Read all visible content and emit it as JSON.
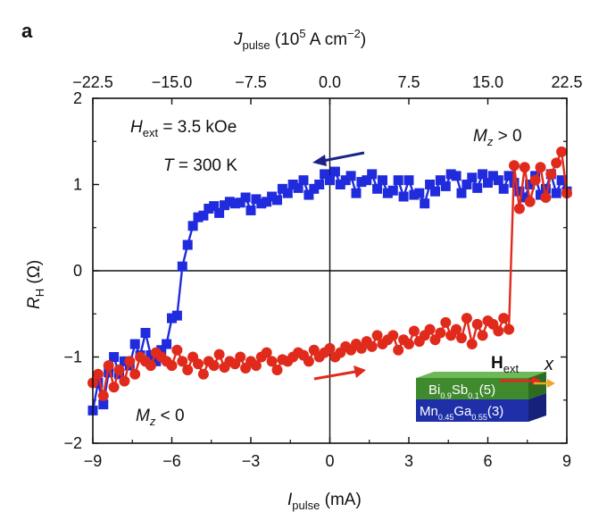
{
  "panel_label": "a",
  "chart_data": {
    "type": "scatter",
    "xlabel": {
      "main": "I",
      "sub": "pulse",
      "unit": " (mA)"
    },
    "ylabel": {
      "main": "R",
      "sub": "H",
      "unit": " (Ω)"
    },
    "top_label": {
      "main": "J",
      "sub": "pulse",
      "unit_pre": " (10",
      "unit_exp": "5",
      "unit_mid": " A cm",
      "unit_exp2": "−2",
      "unit_post": ")"
    },
    "xlim": [
      -9,
      9
    ],
    "ylim": [
      -2,
      2
    ],
    "x_ticks": [
      -9,
      -6,
      -3,
      0,
      3,
      6,
      9
    ],
    "x_tick_labels": [
      "−9",
      "−6",
      "−3",
      "0",
      "3",
      "6",
      "9"
    ],
    "y_ticks": [
      -2,
      -1,
      0,
      1,
      2
    ],
    "y_tick_labels": [
      "−2",
      "−1",
      "0",
      "1",
      "2"
    ],
    "top_ticks": [
      -22.5,
      -15.0,
      -7.5,
      0.0,
      7.5,
      15.0,
      22.5
    ],
    "top_tick_labels": [
      "−22.5",
      "−15.0",
      "−7.5",
      "0.0",
      "7.5",
      "15.0",
      "22.5"
    ],
    "annotations": {
      "hext": {
        "main": "H",
        "sub": "ext",
        "rest": " = 3.5 kOe"
      },
      "temp": {
        "main": "T",
        "rest": " = 300 K"
      },
      "mz_pos": {
        "main": "M",
        "sub": "z",
        "rest": " > 0"
      },
      "mz_neg": {
        "main": "M",
        "sub": "z",
        "rest": " < 0"
      }
    },
    "series": [
      {
        "color": "#1f2bdc",
        "marker": "square",
        "sweep": "decreasing",
        "x": [
          9.0,
          8.8,
          8.6,
          8.4,
          8.2,
          8.0,
          7.8,
          7.6,
          7.4,
          7.2,
          7.0,
          6.8,
          6.6,
          6.4,
          6.2,
          6.0,
          5.8,
          5.6,
          5.4,
          5.2,
          5.0,
          4.8,
          4.6,
          4.4,
          4.2,
          4.0,
          3.8,
          3.6,
          3.4,
          3.2,
          3.0,
          2.8,
          2.6,
          2.4,
          2.2,
          2.0,
          1.8,
          1.6,
          1.4,
          1.2,
          1.0,
          0.8,
          0.6,
          0.4,
          0.2,
          0.0,
          -0.2,
          -0.4,
          -0.6,
          -0.8,
          -1.0,
          -1.2,
          -1.4,
          -1.6,
          -1.8,
          -2.0,
          -2.2,
          -2.4,
          -2.6,
          -2.8,
          -3.0,
          -3.2,
          -3.4,
          -3.6,
          -3.8,
          -4.0,
          -4.2,
          -4.4,
          -4.6,
          -4.8,
          -5.0,
          -5.2,
          -5.4,
          -5.6,
          -5.8,
          -6.0,
          -6.2,
          -6.4,
          -6.6,
          -6.8,
          -7.0,
          -7.2,
          -7.4,
          -7.6,
          -7.8,
          -8.0,
          -8.2,
          -8.4,
          -8.6,
          -8.8,
          -9.0
        ],
        "y": [
          0.92,
          1.05,
          0.9,
          1.12,
          0.95,
          0.88,
          1.1,
          1.0,
          0.85,
          0.92,
          1.02,
          1.1,
          0.95,
          1.05,
          1.1,
          1.02,
          1.12,
          0.96,
          1.08,
          1.0,
          0.9,
          1.1,
          1.12,
          0.98,
          1.05,
          0.92,
          1.0,
          0.78,
          0.9,
          0.88,
          1.05,
          0.86,
          1.05,
          0.93,
          0.9,
          1.05,
          0.95,
          1.12,
          1.05,
          1.03,
          0.9,
          1.1,
          1.05,
          1.0,
          1.15,
          1.05,
          1.12,
          1.0,
          0.95,
          0.88,
          1.05,
          0.96,
          1.0,
          0.9,
          0.95,
          0.82,
          0.86,
          0.8,
          0.78,
          0.83,
          0.7,
          0.85,
          0.79,
          0.78,
          0.8,
          0.76,
          0.67,
          0.75,
          0.72,
          0.64,
          0.62,
          0.52,
          0.3,
          0.05,
          -0.52,
          -0.55,
          -0.85,
          -0.92,
          -1.05,
          -0.98,
          -0.72,
          -0.98,
          -0.85,
          -1.1,
          -1.05,
          -1.2,
          -1.0,
          -1.18,
          -1.55,
          -1.3,
          -1.62
        ]
      },
      {
        "color": "#e02a1c",
        "marker": "circle",
        "sweep": "increasing",
        "x": [
          -9.0,
          -8.8,
          -8.6,
          -8.4,
          -8.2,
          -8.0,
          -7.8,
          -7.6,
          -7.4,
          -7.2,
          -7.0,
          -6.8,
          -6.6,
          -6.4,
          -6.2,
          -6.0,
          -5.8,
          -5.6,
          -5.4,
          -5.2,
          -5.0,
          -4.8,
          -4.6,
          -4.4,
          -4.2,
          -4.0,
          -3.8,
          -3.6,
          -3.4,
          -3.2,
          -3.0,
          -2.8,
          -2.6,
          -2.4,
          -2.2,
          -2.0,
          -1.8,
          -1.6,
          -1.4,
          -1.2,
          -1.0,
          -0.8,
          -0.6,
          -0.4,
          -0.2,
          0.0,
          0.2,
          0.4,
          0.6,
          0.8,
          1.0,
          1.2,
          1.4,
          1.6,
          1.8,
          2.0,
          2.2,
          2.4,
          2.6,
          2.8,
          3.0,
          3.2,
          3.4,
          3.6,
          3.8,
          4.0,
          4.2,
          4.4,
          4.6,
          4.8,
          5.0,
          5.2,
          5.4,
          5.6,
          5.8,
          6.0,
          6.2,
          6.4,
          6.6,
          6.8,
          7.0,
          7.2,
          7.4,
          7.6,
          7.8,
          8.0,
          8.2,
          8.4,
          8.6,
          8.8,
          9.0
        ],
        "y": [
          -1.3,
          -1.2,
          -1.45,
          -1.1,
          -1.35,
          -1.15,
          -1.28,
          -1.05,
          -1.2,
          -1.0,
          -1.05,
          -1.1,
          -0.95,
          -1.0,
          -1.05,
          -1.1,
          -0.92,
          -1.05,
          -1.15,
          -1.0,
          -1.08,
          -1.2,
          -1.05,
          -1.1,
          -0.97,
          -1.12,
          -1.05,
          -1.08,
          -1.0,
          -1.13,
          -1.05,
          -1.1,
          -1.0,
          -0.95,
          -1.05,
          -1.15,
          -1.03,
          -1.05,
          -1.0,
          -0.95,
          -0.98,
          -1.05,
          -0.92,
          -1.0,
          -0.95,
          -0.9,
          -1.0,
          -0.95,
          -0.88,
          -0.92,
          -0.85,
          -0.9,
          -0.82,
          -0.88,
          -0.75,
          -0.85,
          -0.8,
          -0.75,
          -0.92,
          -0.8,
          -0.85,
          -0.7,
          -0.82,
          -0.75,
          -0.68,
          -0.8,
          -0.72,
          -0.6,
          -0.75,
          -0.68,
          -0.78,
          -0.55,
          -0.85,
          -0.62,
          -0.75,
          -0.58,
          -0.62,
          -0.7,
          -0.55,
          -0.68,
          1.22,
          0.72,
          1.2,
          0.8,
          1.05,
          1.2,
          0.85,
          1.12,
          1.25,
          1.38,
          0.9
        ]
      }
    ]
  },
  "inset": {
    "hext": {
      "main": "H",
      "sub": "ext"
    },
    "x_axis": "x",
    "layer_top": {
      "el1": "Bi",
      "sub1": "0.9",
      "el2": "Sb",
      "sub2": "0.1",
      "thick": "(5)"
    },
    "layer_bottom": {
      "el1": "Mn",
      "sub1": "0.45",
      "el2": "Ga",
      "sub2": "0.55",
      "thick": "(3)"
    }
  }
}
